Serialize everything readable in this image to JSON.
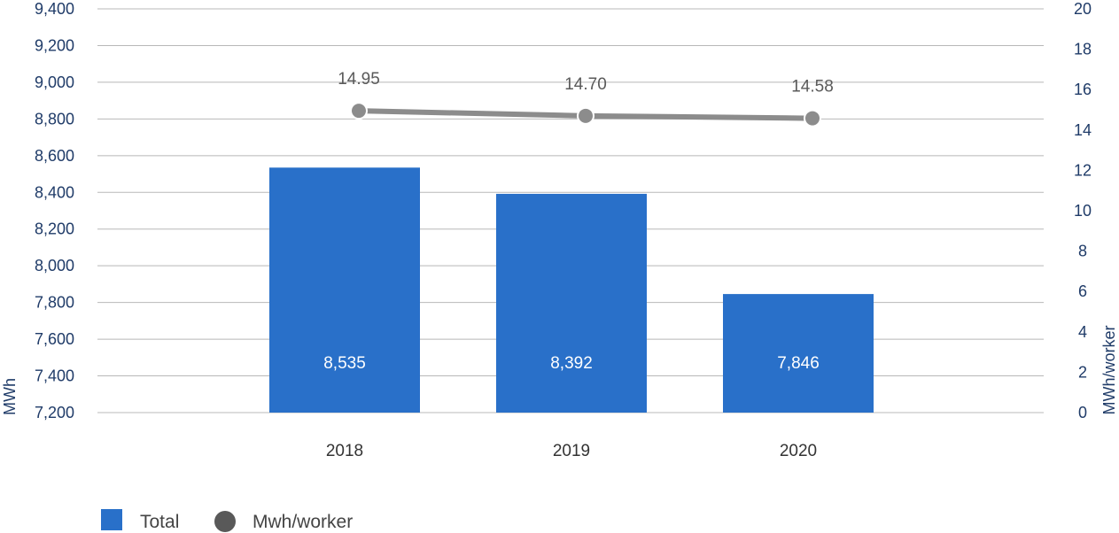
{
  "chart_data": {
    "type": "bar",
    "categories": [
      "2018",
      "2019",
      "2020"
    ],
    "series": [
      {
        "name": "Total",
        "type": "bar",
        "axis": "left",
        "values": [
          8535,
          8392,
          7846
        ],
        "labels": [
          "8,535",
          "8,392",
          "7,846"
        ],
        "color": "#2970c9"
      },
      {
        "name": "Mwh/worker",
        "type": "line",
        "axis": "right",
        "values": [
          14.95,
          14.7,
          14.58
        ],
        "labels": [
          "14.95",
          "14.70",
          "14.58"
        ],
        "color": "#8c8c8c"
      }
    ],
    "ylabel_left": "MWh",
    "ylabel_right": "MWh/worker",
    "ylim_left": [
      7200,
      9400
    ],
    "ylim_right": [
      0,
      20
    ],
    "yticks_left": [
      "7,200",
      "7,400",
      "7,600",
      "7,800",
      "8,000",
      "8,200",
      "8,400",
      "8,600",
      "8,800",
      "9,000",
      "9,200",
      "9,400"
    ],
    "yticks_right": [
      "0",
      "2",
      "4",
      "6",
      "8",
      "10",
      "12",
      "14",
      "16",
      "18",
      "20"
    ],
    "grid": true,
    "legend_position": "bottom-left",
    "legend": [
      "Total",
      "Mwh/worker"
    ]
  }
}
